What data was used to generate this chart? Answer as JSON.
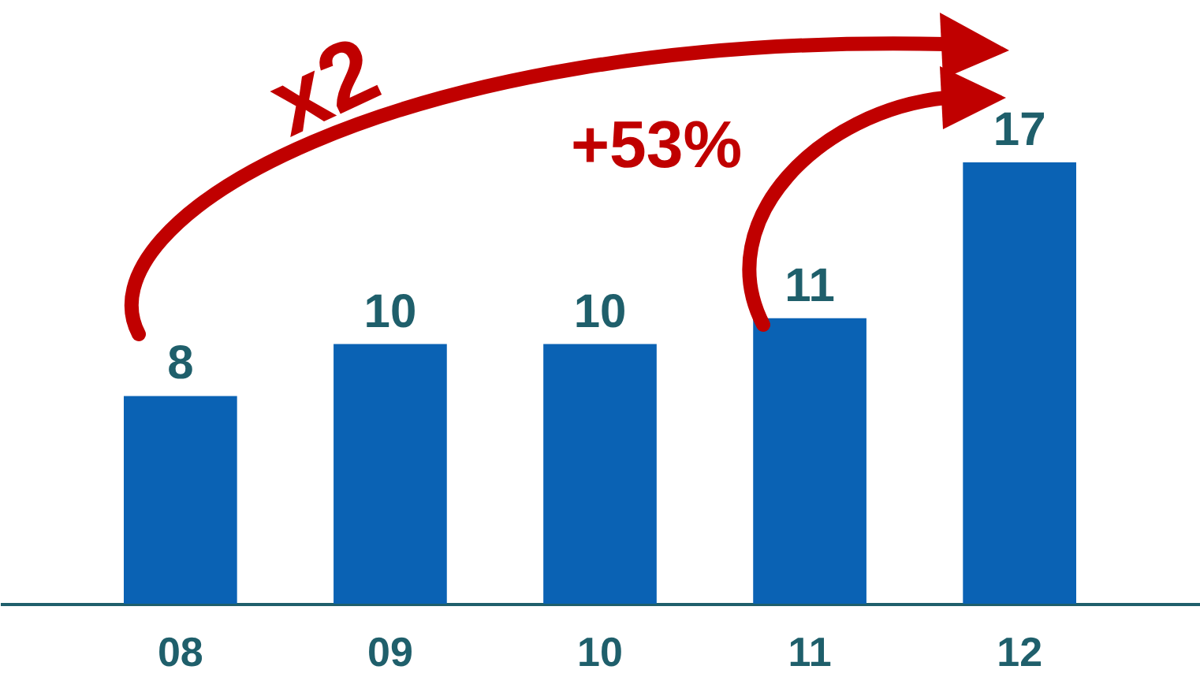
{
  "chart_data": {
    "type": "bar",
    "categories": [
      "08",
      "09",
      "10",
      "11",
      "12"
    ],
    "values": [
      8,
      10,
      10,
      11,
      17
    ],
    "color": "#0a62b4",
    "data_labels": true,
    "annotations": [
      "x2",
      "+53%"
    ]
  }
}
